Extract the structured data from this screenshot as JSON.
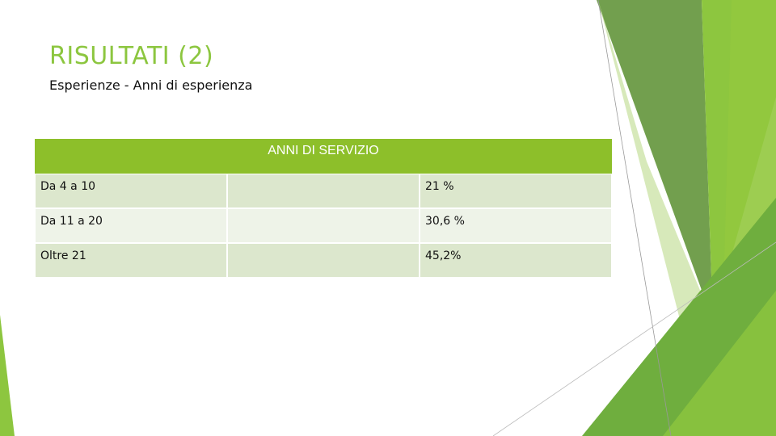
{
  "slide": {
    "title": "RISULTATI (2)",
    "subtitle": "Esperienze - Anni di esperienza"
  },
  "table": {
    "header": "ANNI DI SERVIZIO",
    "rows": [
      [
        "Da 4 a 10",
        "21 %"
      ],
      [
        "Da 11 a 20",
        "30,6 %"
      ],
      [
        "Oltre 21",
        "45,2%"
      ]
    ]
  }
}
